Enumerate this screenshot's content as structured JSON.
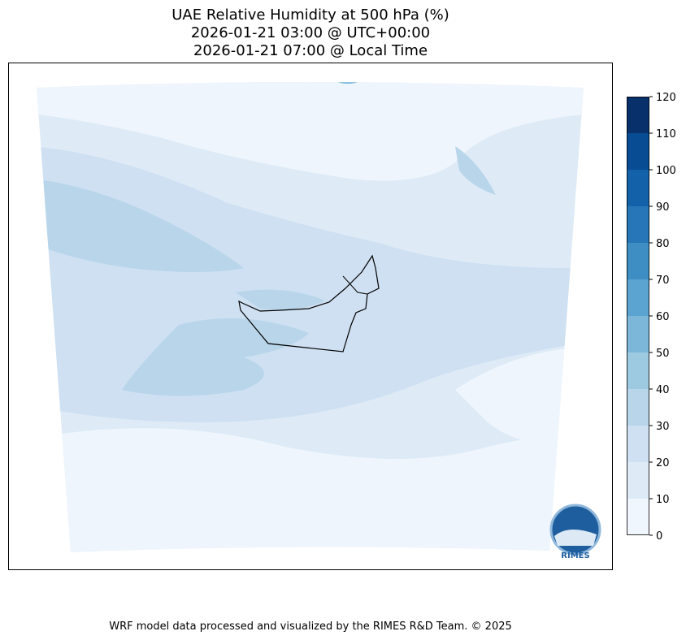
{
  "header": {
    "title": [
      "UAE Relative Humidity at 500 hPa (%)",
      "2026-01-21 03:00 @ UTC+00:00",
      "2026-01-21 07:00 @ Local Time"
    ]
  },
  "colorbar": {
    "lim": [
      0,
      120
    ],
    "ticks": [
      0,
      10,
      20,
      30,
      40,
      50,
      60,
      70,
      80,
      90,
      100,
      110,
      120
    ],
    "colors": [
      "#f0f6fd",
      "#deebf7",
      "#cee0f2",
      "#b8d5ea",
      "#9ecae1",
      "#7cb7da",
      "#5ba3d0",
      "#3e8ec4",
      "#2676b8",
      "#1361a9",
      "#084c94",
      "#08306b"
    ]
  },
  "logo": {
    "text": "RIMES"
  },
  "footer": {
    "text": "WRF model data processed and visualized by the RIMES R&D Team. © 2025"
  }
}
